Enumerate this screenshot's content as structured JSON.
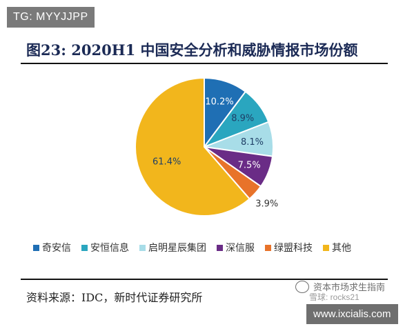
{
  "overlay_tag": "TG: MYYJJPP",
  "chart_data": {
    "type": "pie",
    "title": "图23:   2020H1 中国安全分析和威胁情报市场份额",
    "labels": [
      "奇安信",
      "安恒信息",
      "启明星辰集团",
      "深信服",
      "绿盟科技",
      "其他"
    ],
    "values": [
      10.2,
      8.9,
      8.1,
      7.5,
      3.9,
      61.4
    ],
    "value_labels": [
      "10.2%",
      "8.9%",
      "8.1%",
      "7.5%",
      "3.9%",
      "61.4%"
    ],
    "colors": [
      "#1f6fb4",
      "#2aa6bf",
      "#a8dde8",
      "#6a2c86",
      "#e8732a",
      "#f2b61c"
    ],
    "label_colors": [
      "#ffffff",
      "#1f3f66",
      "#1f3f66",
      "#ffffff",
      "#1f3f66",
      "#1f3f66"
    ],
    "legend_position": "bottom"
  },
  "source": "资料来源：IDC，新时代证券研究所",
  "watermark": {
    "text": "资本市场求生指南",
    "subtext": "雪球: rocks21"
  },
  "url_tag": "www.ixcialis.com"
}
